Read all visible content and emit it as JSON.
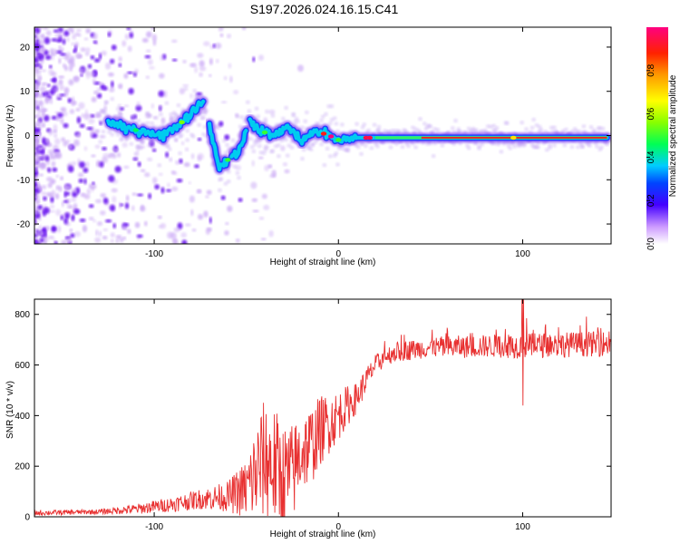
{
  "title": "S197.2026.024.16.15.C41",
  "chart_data": [
    {
      "type": "heatmap",
      "name": "spectrogram",
      "xlabel": "Height of straight line (km)",
      "ylabel": "Frequency (Hz)",
      "xlim": [
        -165,
        148
      ],
      "ylim": [
        -24.5,
        24.5
      ],
      "xticks": [
        -100,
        0,
        100
      ],
      "xtick_labels": [
        "-100",
        "0",
        "100"
      ],
      "yticks": [
        -20,
        -10,
        0,
        10,
        20
      ],
      "ytick_labels": [
        "-20",
        "-10",
        "0",
        "10",
        "20"
      ],
      "ridge": {
        "x": [
          -125,
          -115,
          -105,
          -95,
          -85,
          -78,
          -73,
          -65,
          -55,
          -48,
          -42,
          -35,
          -28,
          -20,
          -12,
          -5,
          0,
          10,
          20,
          40,
          60,
          80,
          100,
          120,
          145
        ],
        "y": [
          3,
          1.5,
          1,
          0,
          3,
          6,
          8,
          -7,
          -4,
          3,
          1,
          0,
          2,
          -1,
          1,
          0,
          -1,
          -0.5,
          -0.5,
          -0.5,
          -0.5,
          -0.5,
          -0.5,
          -0.5,
          -0.5
        ]
      },
      "colorbar": {
        "label": "Normalized spectral amplitude",
        "range": [
          0,
          1
        ],
        "ticks": [
          0.0,
          0.2,
          0.4,
          0.6,
          0.8
        ],
        "tick_labels": [
          "0.0",
          "0.2",
          "0.4",
          "0.6",
          "0.8"
        ]
      }
    },
    {
      "type": "line",
      "name": "snr",
      "xlabel": "Height of straight line (km)",
      "ylabel": "SNR (10 * v/v)",
      "xlim": [
        -165,
        148
      ],
      "ylim": [
        0,
        860
      ],
      "xticks": [
        -100,
        0,
        100
      ],
      "xtick_labels": [
        "-100",
        "0",
        "100"
      ],
      "yticks": [
        0,
        200,
        400,
        600,
        800
      ],
      "ytick_labels": [
        "0",
        "200",
        "400",
        "600",
        "800"
      ],
      "color": "#e83030",
      "envelope": {
        "x": [
          -165,
          -130,
          -110,
          -90,
          -75,
          -60,
          -50,
          -45,
          -40,
          -35,
          -30,
          -25,
          -20,
          -15,
          -10,
          -5,
          0,
          5,
          10,
          15,
          20,
          25,
          30,
          40,
          50,
          60,
          80,
          100,
          120,
          148
        ],
        "base": [
          15,
          20,
          30,
          50,
          70,
          80,
          110,
          170,
          230,
          200,
          150,
          170,
          260,
          280,
          340,
          370,
          400,
          440,
          470,
          540,
          600,
          630,
          650,
          660,
          670,
          670,
          675,
          675,
          680,
          685
        ],
        "amp": [
          10,
          10,
          20,
          30,
          40,
          60,
          120,
          200,
          240,
          240,
          220,
          200,
          160,
          160,
          140,
          120,
          100,
          80,
          60,
          50,
          40,
          40,
          40,
          40,
          40,
          45,
          45,
          50,
          50,
          50
        ]
      }
    }
  ]
}
